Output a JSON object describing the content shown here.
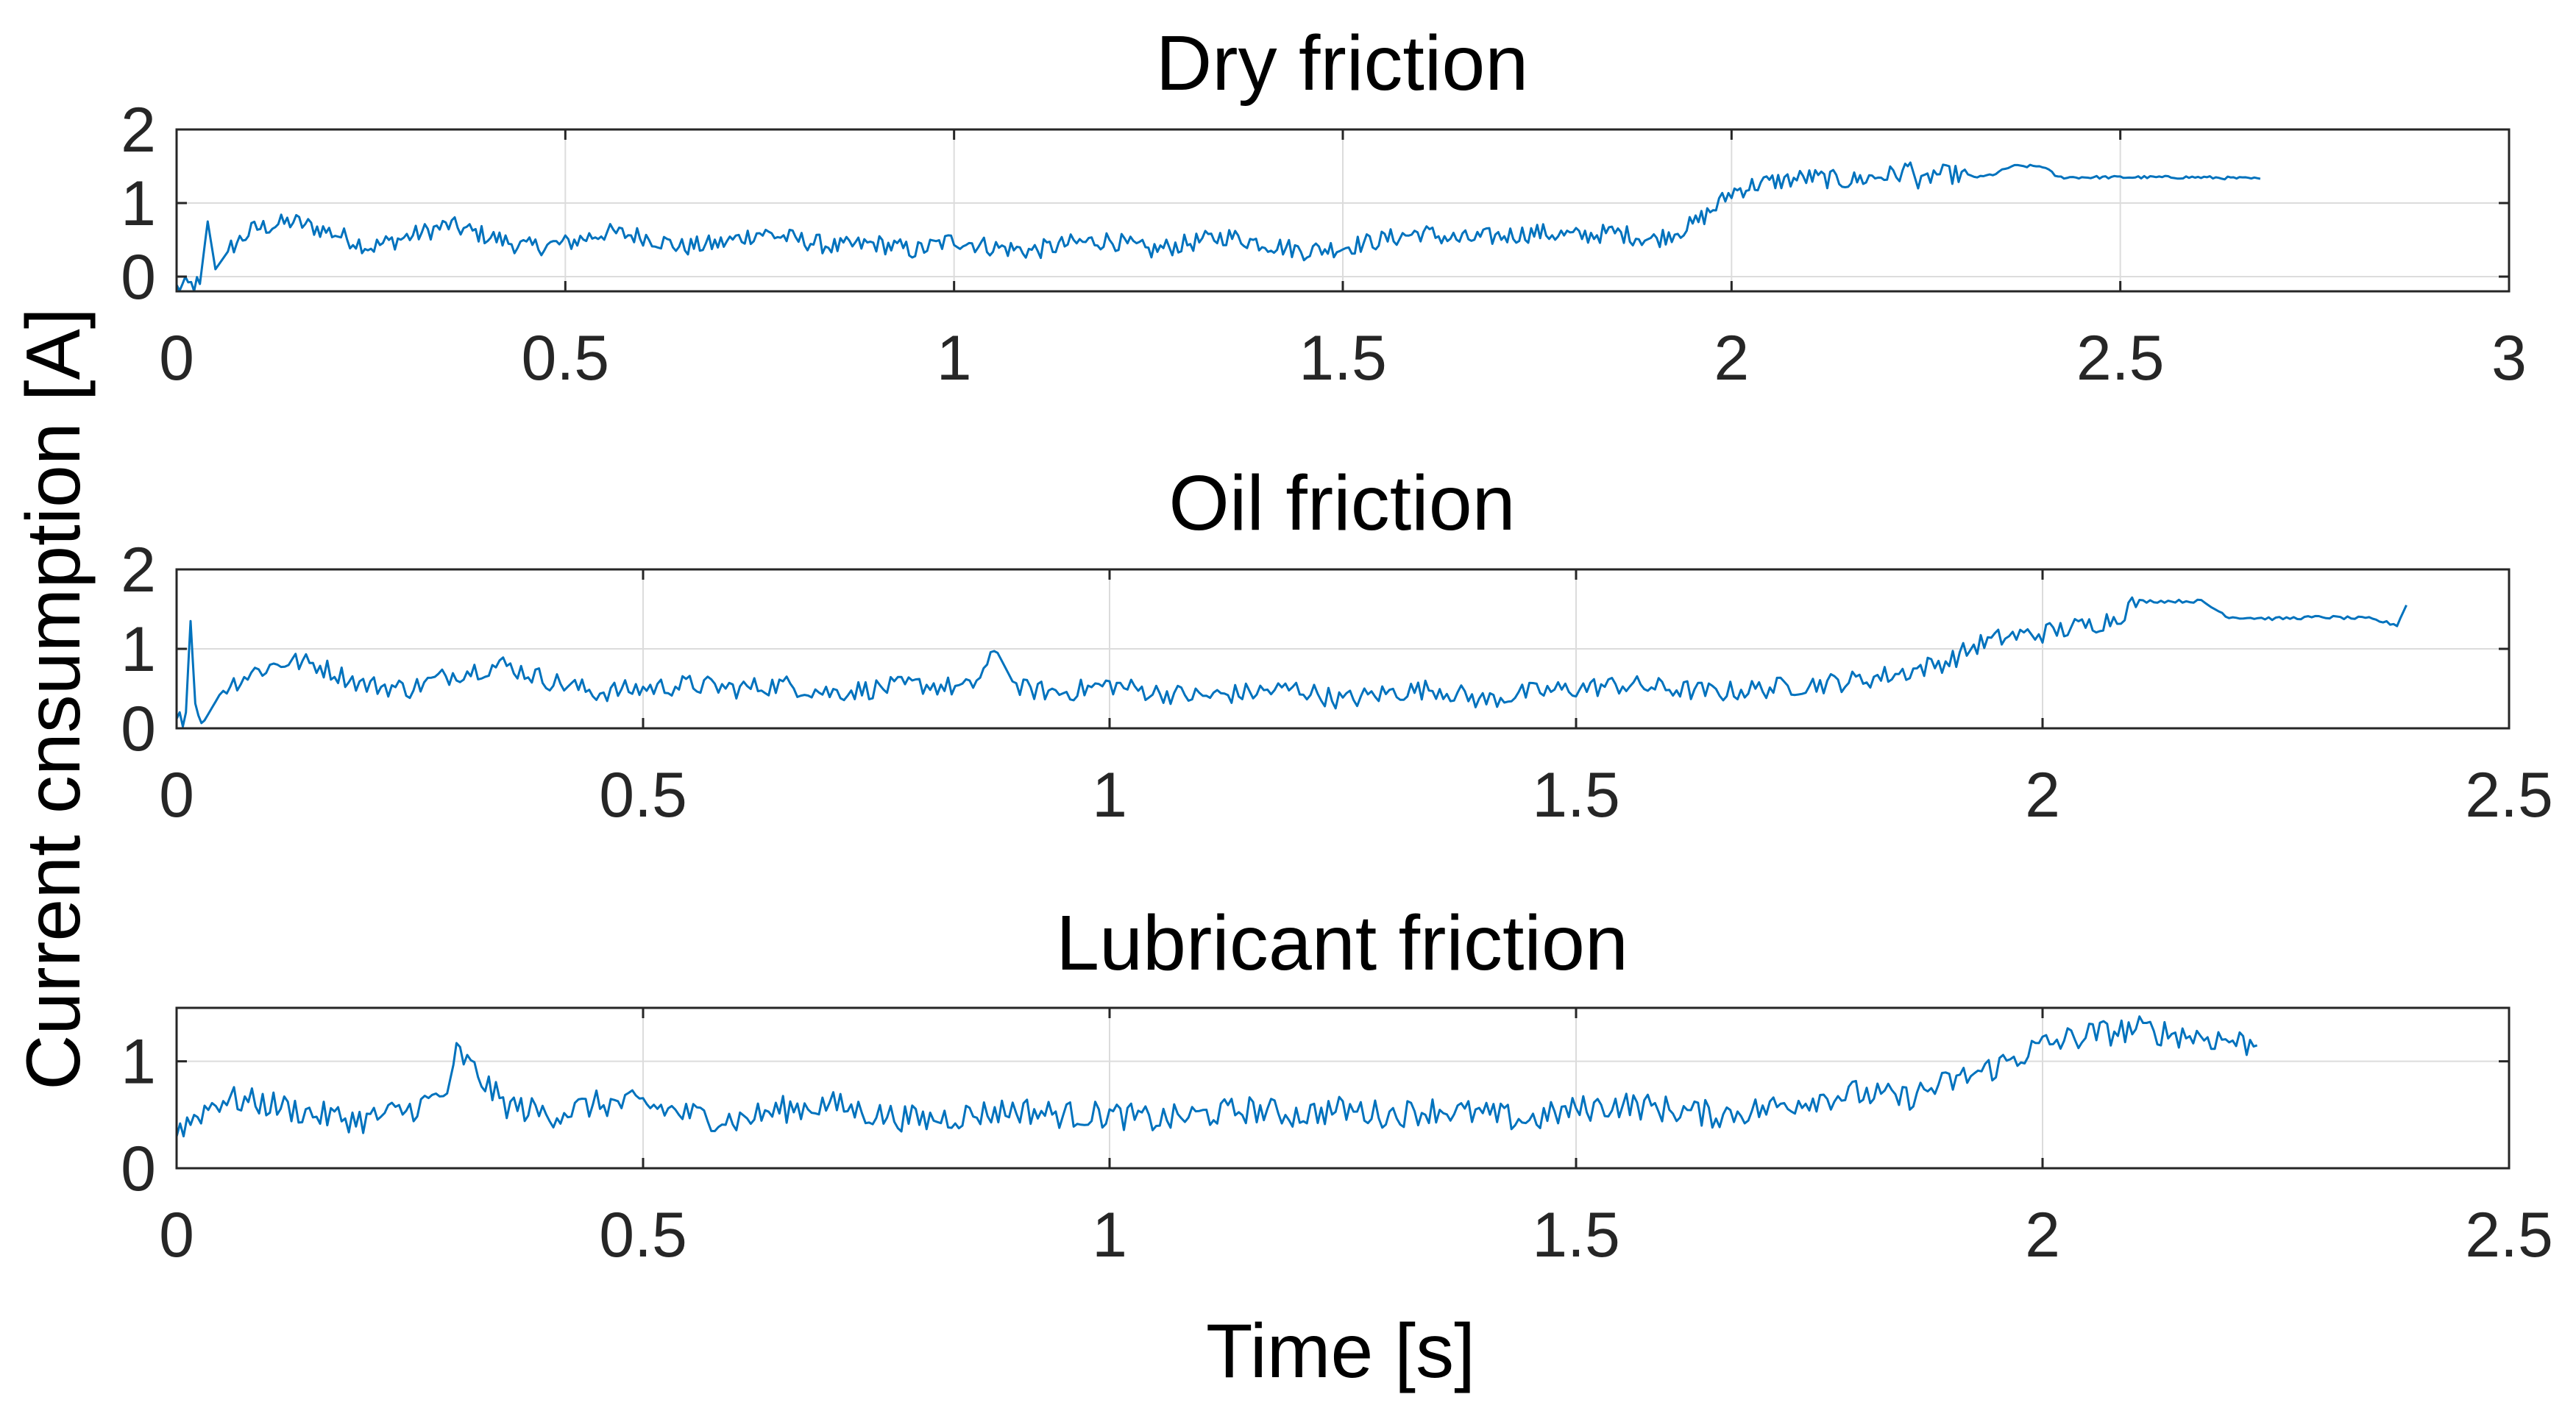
{
  "figure": {
    "ylabel": "Current cnsumption [A]",
    "xlabel": "Time [s]"
  },
  "chart_data": [
    {
      "type": "line",
      "title": "Dry friction",
      "xlabel": "",
      "ylabel": "Current cnsumption [A]",
      "xlim": [
        0,
        3
      ],
      "ylim": [
        -0.2,
        2
      ],
      "xticks": [
        0,
        0.5,
        1,
        1.5,
        2,
        2.5,
        3
      ],
      "xtick_labels": [
        "0",
        "0.5",
        "1",
        "1.5",
        "2",
        "2.5",
        "3"
      ],
      "yticks": [
        0,
        1,
        2
      ],
      "ytick_labels": [
        "0",
        "1",
        "2"
      ],
      "grid": true,
      "color": "#0072BD",
      "series": [
        {
          "x": [
            0,
            0.03,
            0.04,
            0.05,
            0.07,
            0.1,
            0.15,
            0.2,
            0.25,
            0.3,
            0.35,
            0.4,
            0.45,
            0.5,
            0.55,
            0.6,
            0.65,
            0.7,
            0.75,
            0.8,
            0.85,
            0.9,
            0.95,
            1.0,
            1.05,
            1.1,
            1.15,
            1.2,
            1.25,
            1.3,
            1.35,
            1.4,
            1.45,
            1.5,
            1.55,
            1.6,
            1.65,
            1.7,
            1.75,
            1.8,
            1.85,
            1.9,
            1.95,
            1.98,
            2.0,
            2.03,
            2.06,
            2.1,
            2.15,
            2.2,
            2.22,
            2.23,
            2.24,
            2.26,
            2.3,
            2.32,
            2.34,
            2.36,
            2.38,
            2.4,
            2.42,
            2.5,
            2.6,
            2.68
          ],
          "y": [
            -0.15,
            -0.1,
            0.75,
            0.1,
            0.4,
            0.65,
            0.75,
            0.6,
            0.4,
            0.55,
            0.7,
            0.55,
            0.4,
            0.45,
            0.6,
            0.55,
            0.4,
            0.45,
            0.6,
            0.5,
            0.4,
            0.45,
            0.35,
            0.5,
            0.4,
            0.35,
            0.45,
            0.5,
            0.35,
            0.45,
            0.55,
            0.45,
            0.35,
            0.4,
            0.5,
            0.6,
            0.5,
            0.55,
            0.6,
            0.55,
            0.6,
            0.5,
            0.7,
            0.95,
            1.15,
            1.25,
            1.3,
            1.35,
            1.3,
            1.38,
            1.4,
            1.55,
            1.2,
            1.4,
            1.38,
            1.35,
            1.4,
            1.5,
            1.5,
            1.5,
            1.35,
            1.35,
            1.35,
            1.33
          ]
        }
      ]
    },
    {
      "type": "line",
      "title": "Oil friction",
      "xlabel": "",
      "ylabel": "Current cnsumption [A]",
      "xlim": [
        0,
        2.5
      ],
      "ylim": [
        0,
        2
      ],
      "xticks": [
        0,
        0.5,
        1,
        1.5,
        2,
        2.5
      ],
      "xtick_labels": [
        "0",
        "0.5",
        "1",
        "1.5",
        "2",
        "2.5"
      ],
      "yticks": [
        0,
        1,
        2
      ],
      "ytick_labels": [
        "0",
        "1",
        "2"
      ],
      "grid": true,
      "color": "#0072BD",
      "series": [
        {
          "x": [
            0,
            0.01,
            0.015,
            0.02,
            0.03,
            0.05,
            0.08,
            0.12,
            0.15,
            0.2,
            0.25,
            0.3,
            0.35,
            0.4,
            0.45,
            0.5,
            0.55,
            0.6,
            0.65,
            0.7,
            0.75,
            0.8,
            0.85,
            0.88,
            0.9,
            0.95,
            1.0,
            1.05,
            1.1,
            1.15,
            1.2,
            1.25,
            1.3,
            1.35,
            1.4,
            1.45,
            1.5,
            1.55,
            1.6,
            1.65,
            1.7,
            1.75,
            1.8,
            1.85,
            1.9,
            1.93,
            1.96,
            2.0,
            2.05,
            2.08,
            2.1,
            2.15,
            2.17,
            2.2,
            2.25,
            2.3,
            2.35,
            2.38,
            2.39
          ],
          "y": [
            0.05,
            0.2,
            1.35,
            0.3,
            0.1,
            0.5,
            0.7,
            0.85,
            0.8,
            0.55,
            0.5,
            0.7,
            0.8,
            0.6,
            0.45,
            0.5,
            0.55,
            0.5,
            0.55,
            0.45,
            0.5,
            0.55,
            0.5,
            0.95,
            0.5,
            0.45,
            0.55,
            0.45,
            0.4,
            0.45,
            0.5,
            0.35,
            0.45,
            0.5,
            0.35,
            0.45,
            0.5,
            0.55,
            0.5,
            0.45,
            0.5,
            0.55,
            0.6,
            0.7,
            0.85,
            1.05,
            1.15,
            1.2,
            1.3,
            1.4,
            1.6,
            1.6,
            1.6,
            1.4,
            1.38,
            1.4,
            1.38,
            1.3,
            1.55
          ]
        }
      ]
    },
    {
      "type": "line",
      "title": "Lubricant friction",
      "xlabel": "Time [s]",
      "ylabel": "Current cnsumption [A]",
      "xlim": [
        0,
        2.5
      ],
      "ylim": [
        0,
        1.5
      ],
      "xticks": [
        0,
        0.5,
        1,
        1.5,
        2,
        2.5
      ],
      "xtick_labels": [
        "0",
        "0.5",
        "1",
        "1.5",
        "2",
        "2.5"
      ],
      "yticks": [
        0,
        1
      ],
      "ytick_labels": [
        "0",
        "1"
      ],
      "grid": true,
      "color": "#0072BD",
      "series": [
        {
          "x": [
            0,
            0.03,
            0.05,
            0.1,
            0.15,
            0.2,
            0.25,
            0.29,
            0.3,
            0.35,
            0.4,
            0.45,
            0.5,
            0.55,
            0.6,
            0.65,
            0.7,
            0.75,
            0.8,
            0.85,
            0.9,
            0.95,
            1.0,
            1.05,
            1.1,
            1.15,
            1.2,
            1.25,
            1.3,
            1.35,
            1.4,
            1.45,
            1.5,
            1.55,
            1.6,
            1.65,
            1.7,
            1.75,
            1.8,
            1.85,
            1.9,
            1.95,
            2.0,
            2.05,
            2.1,
            2.15,
            2.2,
            2.23
          ],
          "y": [
            0.35,
            0.55,
            0.65,
            0.6,
            0.5,
            0.45,
            0.55,
            0.7,
            1.1,
            0.6,
            0.5,
            0.6,
            0.6,
            0.5,
            0.45,
            0.55,
            0.6,
            0.5,
            0.45,
            0.5,
            0.55,
            0.5,
            0.5,
            0.45,
            0.5,
            0.55,
            0.5,
            0.55,
            0.5,
            0.55,
            0.5,
            0.45,
            0.55,
            0.6,
            0.55,
            0.5,
            0.55,
            0.65,
            0.7,
            0.65,
            0.8,
            0.95,
            1.15,
            1.25,
            1.3,
            1.25,
            1.2,
            1.15
          ]
        }
      ]
    }
  ]
}
